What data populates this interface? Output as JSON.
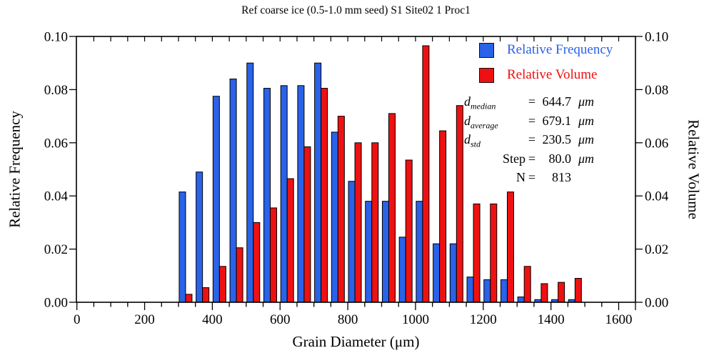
{
  "title": "Ref coarse ice (0.5-1.0 mm seed) S1 Site02 1 Proc1",
  "axes": {
    "x_title": "Grain Diameter (μm)",
    "y_left_title": "Relative Frequency",
    "y_right_title": "Relative Volume"
  },
  "legend": {
    "items": [
      {
        "label": "Relative Frequency",
        "color": "#2a62e8"
      },
      {
        "label": "Relative Volume",
        "color": "#ee1111"
      }
    ]
  },
  "stats": {
    "rows": [
      {
        "label": "d",
        "sub": "median",
        "eq": "=",
        "value": "644.7",
        "unit": "μm"
      },
      {
        "label": "d",
        "sub": "average",
        "eq": "=",
        "value": "679.1",
        "unit": "μm"
      },
      {
        "label": "d",
        "sub": "std",
        "eq": "=",
        "value": "230.5",
        "unit": "μm"
      },
      {
        "label": "Step",
        "sub": "",
        "eq": "=",
        "value": "80.0",
        "unit": "μm"
      },
      {
        "label": "N",
        "sub": "",
        "eq": "=",
        "value": "813",
        "unit": ""
      }
    ]
  },
  "chart_data": {
    "type": "bar",
    "title": "Ref coarse ice (0.5-1.0 mm seed) S1 Site02 1 Proc1",
    "xlabel": "Grain Diameter (μm)",
    "ylabel_left": "Relative Frequency",
    "ylabel_right": "Relative Volume",
    "xlim": [
      0,
      1650
    ],
    "ylim": [
      0,
      0.1
    ],
    "x_major_tick_step": 200,
    "x_minor_tick_step": 50,
    "y_major_ticks": [
      0,
      0.02,
      0.04,
      0.06,
      0.08,
      0.1
    ],
    "grid": false,
    "legend_position": "top-right",
    "bin_width_um": 50,
    "bin_starts": [
      300,
      350,
      400,
      450,
      500,
      550,
      600,
      650,
      700,
      750,
      800,
      850,
      900,
      950,
      1000,
      1050,
      1100,
      1150,
      1200,
      1250,
      1300,
      1350,
      1400,
      1450
    ],
    "series": [
      {
        "name": "Relative Frequency",
        "color": "#2a62e8",
        "values": [
          0.0415,
          0.049,
          0.0775,
          0.084,
          0.09,
          0.0805,
          0.0815,
          0.0815,
          0.09,
          0.064,
          0.0455,
          0.038,
          0.038,
          0.0245,
          0.038,
          0.022,
          0.022,
          0.0095,
          0.0085,
          0.0085,
          0.002,
          0.001,
          0.001,
          0.001
        ]
      },
      {
        "name": "Relative Volume",
        "color": "#ee1111",
        "values": [
          0.003,
          0.0055,
          0.0135,
          0.0205,
          0.03,
          0.0355,
          0.0465,
          0.0585,
          0.0805,
          0.07,
          0.06,
          0.06,
          0.071,
          0.0535,
          0.0965,
          0.0645,
          0.074,
          0.037,
          0.037,
          0.0415,
          0.0135,
          0.007,
          0.0075,
          0.009
        ]
      }
    ],
    "annotations": {
      "d_median_um": 644.7,
      "d_average_um": 679.1,
      "d_std_um": 230.5,
      "step_um": 80.0,
      "N": 813
    }
  }
}
